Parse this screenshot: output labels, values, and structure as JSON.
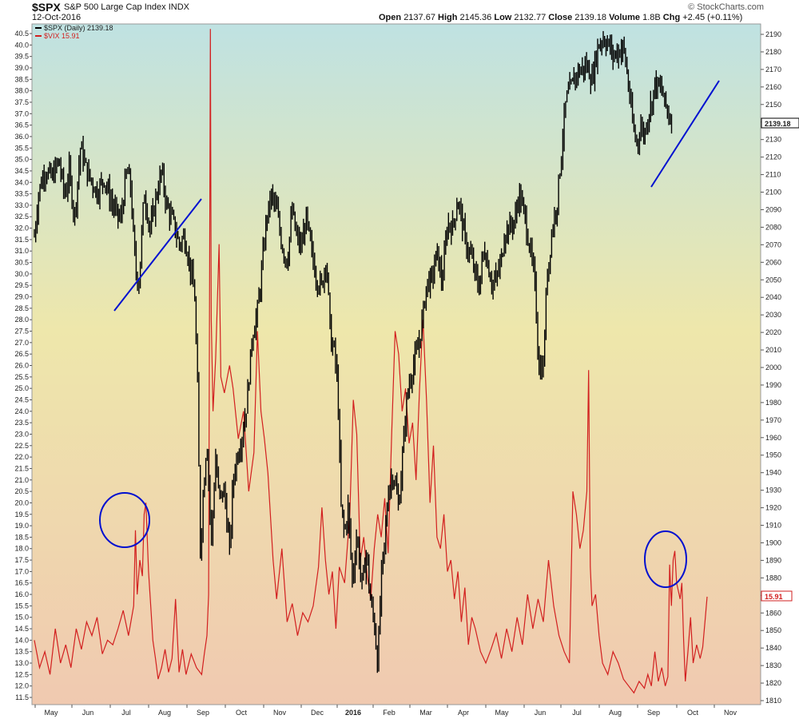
{
  "header": {
    "symbol": "$SPX",
    "description": "S&P 500 Large Cap Index",
    "exchange": "INDX",
    "date": "12-Oct-2016",
    "open_label": "Open",
    "open": "2137.67",
    "high_label": "High",
    "high": "2145.36",
    "low_label": "Low",
    "low": "2132.77",
    "close_label": "Close",
    "close": "2139.18",
    "volume_label": "Volume",
    "volume": "1.8B",
    "chg_label": "Chg",
    "chg": "+2.45 (+0.11%)",
    "credit": "© StockCharts.com"
  },
  "chart_data": {
    "type": "line",
    "legend": [
      {
        "name": "$SPX (Daily) 2139.18",
        "color": "#000000"
      },
      {
        "name": "$VIX 15.91",
        "color": "#d21f1f"
      }
    ],
    "x_months": [
      "May",
      "Jun",
      "Jul",
      "Aug",
      "Sep",
      "Oct",
      "Nov",
      "Dec",
      "2016",
      "Feb",
      "Mar",
      "Apr",
      "May",
      "Jun",
      "Jul",
      "Aug",
      "Sep",
      "Oct",
      "Nov"
    ],
    "spx_axis": {
      "side": "right",
      "ylim": [
        1805,
        2195
      ],
      "ticks": [
        1810,
        1820,
        1830,
        1840,
        1850,
        1860,
        1870,
        1880,
        1890,
        1900,
        1910,
        1920,
        1930,
        1940,
        1950,
        1960,
        1970,
        1980,
        1990,
        2000,
        2010,
        2020,
        2030,
        2040,
        2050,
        2060,
        2070,
        2080,
        2090,
        2100,
        2110,
        2120,
        2130,
        2140,
        2150,
        2160,
        2170,
        2180,
        2190
      ]
    },
    "vix_axis": {
      "side": "left",
      "ylim": [
        11.3,
        40.9
      ],
      "ticks": [
        "11.5",
        "12.0",
        "12.5",
        "13.0",
        "13.5",
        "14.0",
        "14.5",
        "15.0",
        "15.5",
        "16.0",
        "16.5",
        "17.0",
        "17.5",
        "18.0",
        "18.5",
        "19.0",
        "19.5",
        "20.0",
        "20.5",
        "21.0",
        "21.5",
        "22.0",
        "22.5",
        "23.0",
        "23.5",
        "24.0",
        "24.5",
        "25.0",
        "25.5",
        "26.0",
        "26.5",
        "27.0",
        "27.5",
        "28.0",
        "28.5",
        "29.0",
        "29.5",
        "30.0",
        "30.5",
        "31.0",
        "31.5",
        "32.0",
        "32.5",
        "33.0",
        "33.5",
        "34.0",
        "34.5",
        "35.0",
        "35.5",
        "36.0",
        "36.5",
        "37.0",
        "37.5",
        "38.0",
        "38.5",
        "39.0",
        "39.5",
        "40.0",
        "40.5"
      ]
    },
    "spx_last_label": "2139.18",
    "vix_last_label": "15.91",
    "spx_series": {
      "name": "",
      "points": [
        [
          0,
          2075
        ],
        [
          5,
          2100
        ],
        [
          12,
          2113
        ],
        [
          20,
          2108
        ],
        [
          28,
          2118
        ],
        [
          35,
          2098
        ],
        [
          40,
          2112
        ],
        [
          46,
          2085
        ],
        [
          53,
          2126
        ],
        [
          60,
          2112
        ],
        [
          66,
          2106
        ],
        [
          72,
          2100
        ],
        [
          80,
          2108
        ],
        [
          86,
          2098
        ],
        [
          92,
          2090
        ],
        [
          99,
          2084
        ],
        [
          106,
          2112
        ],
        [
          110,
          2106
        ],
        [
          116,
          2056
        ],
        [
          120,
          2048
        ],
        [
          126,
          2100
        ],
        [
          133,
          2078
        ],
        [
          140,
          2098
        ],
        [
          146,
          2112
        ],
        [
          152,
          2092
        ],
        [
          160,
          2082
        ],
        [
          166,
          2070
        ],
        [
          172,
          2075
        ],
        [
          178,
          2060
        ],
        [
          184,
          2040
        ],
        [
          188,
          1975
        ],
        [
          190,
          1892
        ],
        [
          194,
          1930
        ],
        [
          198,
          1960
        ],
        [
          203,
          1900
        ],
        [
          208,
          1948
        ],
        [
          212,
          1925
        ],
        [
          218,
          1930
        ],
        [
          224,
          1895
        ],
        [
          228,
          1935
        ],
        [
          232,
          1948
        ],
        [
          238,
          1960
        ],
        [
          244,
          1980
        ],
        [
          250,
          2018
        ],
        [
          256,
          2032
        ],
        [
          260,
          2050
        ],
        [
          266,
          2084
        ],
        [
          272,
          2098
        ],
        [
          278,
          2090
        ],
        [
          284,
          2070
        ],
        [
          290,
          2060
        ],
        [
          296,
          2090
        ],
        [
          300,
          2076
        ],
        [
          306,
          2068
        ],
        [
          312,
          2085
        ],
        [
          318,
          2066
        ],
        [
          324,
          2050
        ],
        [
          330,
          2046
        ],
        [
          335,
          2064
        ],
        [
          340,
          2015
        ],
        [
          344,
          2010
        ],
        [
          348,
          1990
        ],
        [
          352,
          1920
        ],
        [
          356,
          1905
        ],
        [
          360,
          1920
        ],
        [
          365,
          1878
        ],
        [
          370,
          1905
        ],
        [
          376,
          1875
        ],
        [
          381,
          1895
        ],
        [
          386,
          1865
        ],
        [
          390,
          1855
        ],
        [
          394,
          1830
        ],
        [
          398,
          1880
        ],
        [
          402,
          1900
        ],
        [
          406,
          1930
        ],
        [
          412,
          1940
        ],
        [
          418,
          1920
        ],
        [
          424,
          1960
        ],
        [
          428,
          1985
        ],
        [
          434,
          2000
        ],
        [
          440,
          2010
        ],
        [
          446,
          2030
        ],
        [
          450,
          2048
        ],
        [
          456,
          2050
        ],
        [
          462,
          2066
        ],
        [
          468,
          2048
        ],
        [
          474,
          2082
        ],
        [
          480,
          2080
        ],
        [
          486,
          2096
        ],
        [
          490,
          2086
        ],
        [
          495,
          2070
        ],
        [
          500,
          2065
        ],
        [
          506,
          2053
        ],
        [
          510,
          2045
        ],
        [
          516,
          2068
        ],
        [
          520,
          2060
        ],
        [
          525,
          2048
        ],
        [
          530,
          2050
        ],
        [
          536,
          2062
        ],
        [
          540,
          2078
        ],
        [
          546,
          2080
        ],
        [
          552,
          2085
        ],
        [
          556,
          2100
        ],
        [
          562,
          2088
        ],
        [
          568,
          2070
        ],
        [
          574,
          2050
        ],
        [
          579,
          2000
        ],
        [
          584,
          2000
        ],
        [
          588,
          2050
        ],
        [
          594,
          2078
        ],
        [
          600,
          2095
        ],
        [
          605,
          2124
        ],
        [
          610,
          2152
        ],
        [
          616,
          2160
        ],
        [
          622,
          2168
        ],
        [
          628,
          2170
        ],
        [
          634,
          2172
        ],
        [
          640,
          2164
        ],
        [
          646,
          2182
        ],
        [
          652,
          2188
        ],
        [
          658,
          2185
        ],
        [
          664,
          2178
        ],
        [
          670,
          2180
        ],
        [
          676,
          2183
        ],
        [
          680,
          2168
        ],
        [
          684,
          2150
        ],
        [
          688,
          2134
        ],
        [
          692,
          2128
        ],
        [
          696,
          2138
        ],
        [
          700,
          2132
        ],
        [
          704,
          2144
        ],
        [
          708,
          2150
        ],
        [
          712,
          2162
        ],
        [
          716,
          2160
        ],
        [
          720,
          2158
        ],
        [
          724,
          2150
        ],
        [
          728,
          2144
        ],
        [
          732,
          2139
        ]
      ]
    },
    "vix_series": {
      "name": "",
      "points": [
        [
          0,
          14.0
        ],
        [
          6,
          12.8
        ],
        [
          12,
          13.5
        ],
        [
          18,
          12.5
        ],
        [
          24,
          14.5
        ],
        [
          30,
          13.0
        ],
        [
          36,
          13.8
        ],
        [
          42,
          12.8
        ],
        [
          48,
          14.5
        ],
        [
          54,
          13.6
        ],
        [
          60,
          14.8
        ],
        [
          66,
          14.2
        ],
        [
          72,
          15.0
        ],
        [
          78,
          13.4
        ],
        [
          84,
          14.0
        ],
        [
          90,
          13.8
        ],
        [
          96,
          14.5
        ],
        [
          102,
          15.3
        ],
        [
          108,
          14.2
        ],
        [
          114,
          15.5
        ],
        [
          116,
          18.8
        ],
        [
          118,
          16.0
        ],
        [
          121,
          17.5
        ],
        [
          124,
          16.8
        ],
        [
          126,
          19.5
        ],
        [
          128,
          20.0
        ],
        [
          131,
          17.0
        ],
        [
          134,
          15.2
        ],
        [
          136,
          14.0
        ],
        [
          139,
          13.2
        ],
        [
          142,
          12.3
        ],
        [
          146,
          12.8
        ],
        [
          150,
          13.6
        ],
        [
          154,
          12.6
        ],
        [
          158,
          13.2
        ],
        [
          162,
          15.8
        ],
        [
          166,
          12.6
        ],
        [
          170,
          13.6
        ],
        [
          174,
          12.5
        ],
        [
          180,
          13.4
        ],
        [
          186,
          12.8
        ],
        [
          192,
          12.5
        ],
        [
          195,
          13.4
        ],
        [
          198,
          14.2
        ],
        [
          200,
          16.0
        ],
        [
          202,
          40.7
        ],
        [
          203,
          28.0
        ],
        [
          205,
          24.0
        ],
        [
          208,
          26.3
        ],
        [
          212,
          31.3
        ],
        [
          214,
          25.5
        ],
        [
          218,
          24.8
        ],
        [
          224,
          26.0
        ],
        [
          228,
          25.0
        ],
        [
          234,
          22.8
        ],
        [
          240,
          24.0
        ],
        [
          246,
          20.5
        ],
        [
          252,
          22.2
        ],
        [
          256,
          27.5
        ],
        [
          260,
          24.0
        ],
        [
          264,
          22.8
        ],
        [
          268,
          21.3
        ],
        [
          274,
          17.5
        ],
        [
          278,
          15.8
        ],
        [
          284,
          18.0
        ],
        [
          290,
          14.8
        ],
        [
          296,
          15.6
        ],
        [
          302,
          14.2
        ],
        [
          308,
          15.2
        ],
        [
          314,
          14.8
        ],
        [
          320,
          15.5
        ],
        [
          326,
          17.2
        ],
        [
          330,
          19.8
        ],
        [
          334,
          17.5
        ],
        [
          338,
          16.0
        ],
        [
          342,
          17.0
        ],
        [
          346,
          14.5
        ],
        [
          350,
          17.2
        ],
        [
          356,
          16.5
        ],
        [
          362,
          19.5
        ],
        [
          366,
          24.5
        ],
        [
          370,
          23.0
        ],
        [
          374,
          17.5
        ],
        [
          378,
          18.5
        ],
        [
          382,
          16.8
        ],
        [
          386,
          15.8
        ],
        [
          390,
          18.0
        ],
        [
          394,
          19.5
        ],
        [
          398,
          18.5
        ],
        [
          402,
          20.2
        ],
        [
          406,
          17.8
        ],
        [
          410,
          23.0
        ],
        [
          414,
          27.5
        ],
        [
          418,
          26.5
        ],
        [
          422,
          24.0
        ],
        [
          426,
          25.0
        ],
        [
          430,
          22.6
        ],
        [
          434,
          23.5
        ],
        [
          438,
          21.0
        ],
        [
          442,
          25.0
        ],
        [
          446,
          28.0
        ],
        [
          450,
          24.5
        ],
        [
          454,
          20.0
        ],
        [
          458,
          22.5
        ],
        [
          462,
          18.5
        ],
        [
          466,
          18.0
        ],
        [
          470,
          19.5
        ],
        [
          474,
          17.0
        ],
        [
          478,
          17.5
        ],
        [
          482,
          15.8
        ],
        [
          486,
          17.0
        ],
        [
          490,
          14.8
        ],
        [
          494,
          16.3
        ],
        [
          498,
          13.8
        ],
        [
          502,
          15.0
        ],
        [
          506,
          14.5
        ],
        [
          512,
          13.5
        ],
        [
          518,
          13.0
        ],
        [
          524,
          13.6
        ],
        [
          530,
          14.3
        ],
        [
          536,
          13.2
        ],
        [
          542,
          14.5
        ],
        [
          548,
          13.5
        ],
        [
          554,
          15.0
        ],
        [
          560,
          13.8
        ],
        [
          566,
          16.0
        ],
        [
          572,
          14.5
        ],
        [
          578,
          15.8
        ],
        [
          584,
          14.8
        ],
        [
          590,
          17.5
        ],
        [
          596,
          15.5
        ],
        [
          602,
          14.2
        ],
        [
          608,
          13.5
        ],
        [
          614,
          13.0
        ],
        [
          618,
          20.5
        ],
        [
          622,
          19.5
        ],
        [
          626,
          18.0
        ],
        [
          630,
          18.8
        ],
        [
          634,
          20.5
        ],
        [
          636,
          25.8
        ],
        [
          638,
          17.2
        ],
        [
          640,
          15.5
        ],
        [
          644,
          16.0
        ],
        [
          648,
          14.2
        ],
        [
          652,
          13.0
        ],
        [
          658,
          12.5
        ],
        [
          664,
          13.5
        ],
        [
          670,
          13.0
        ],
        [
          676,
          12.3
        ],
        [
          682,
          12.0
        ],
        [
          688,
          11.7
        ],
        [
          694,
          12.2
        ],
        [
          700,
          11.9
        ],
        [
          704,
          12.5
        ],
        [
          708,
          12.0
        ],
        [
          712,
          13.5
        ],
        [
          716,
          12.2
        ],
        [
          720,
          12.8
        ],
        [
          724,
          12.0
        ],
        [
          727,
          12.4
        ],
        [
          729,
          17.3
        ],
        [
          731,
          15.5
        ],
        [
          733,
          17.5
        ],
        [
          735,
          17.9
        ],
        [
          737,
          16.5
        ],
        [
          741,
          15.8
        ],
        [
          743,
          16.5
        ],
        [
          745,
          14.0
        ],
        [
          747,
          12.2
        ],
        [
          750,
          13.5
        ],
        [
          753,
          15.0
        ],
        [
          756,
          13.0
        ],
        [
          760,
          13.8
        ],
        [
          764,
          13.2
        ],
        [
          767,
          13.7
        ],
        [
          770,
          15.0
        ],
        [
          772,
          15.9
        ]
      ]
    },
    "annotations": {
      "circles": 2,
      "trendlines": 2
    }
  }
}
